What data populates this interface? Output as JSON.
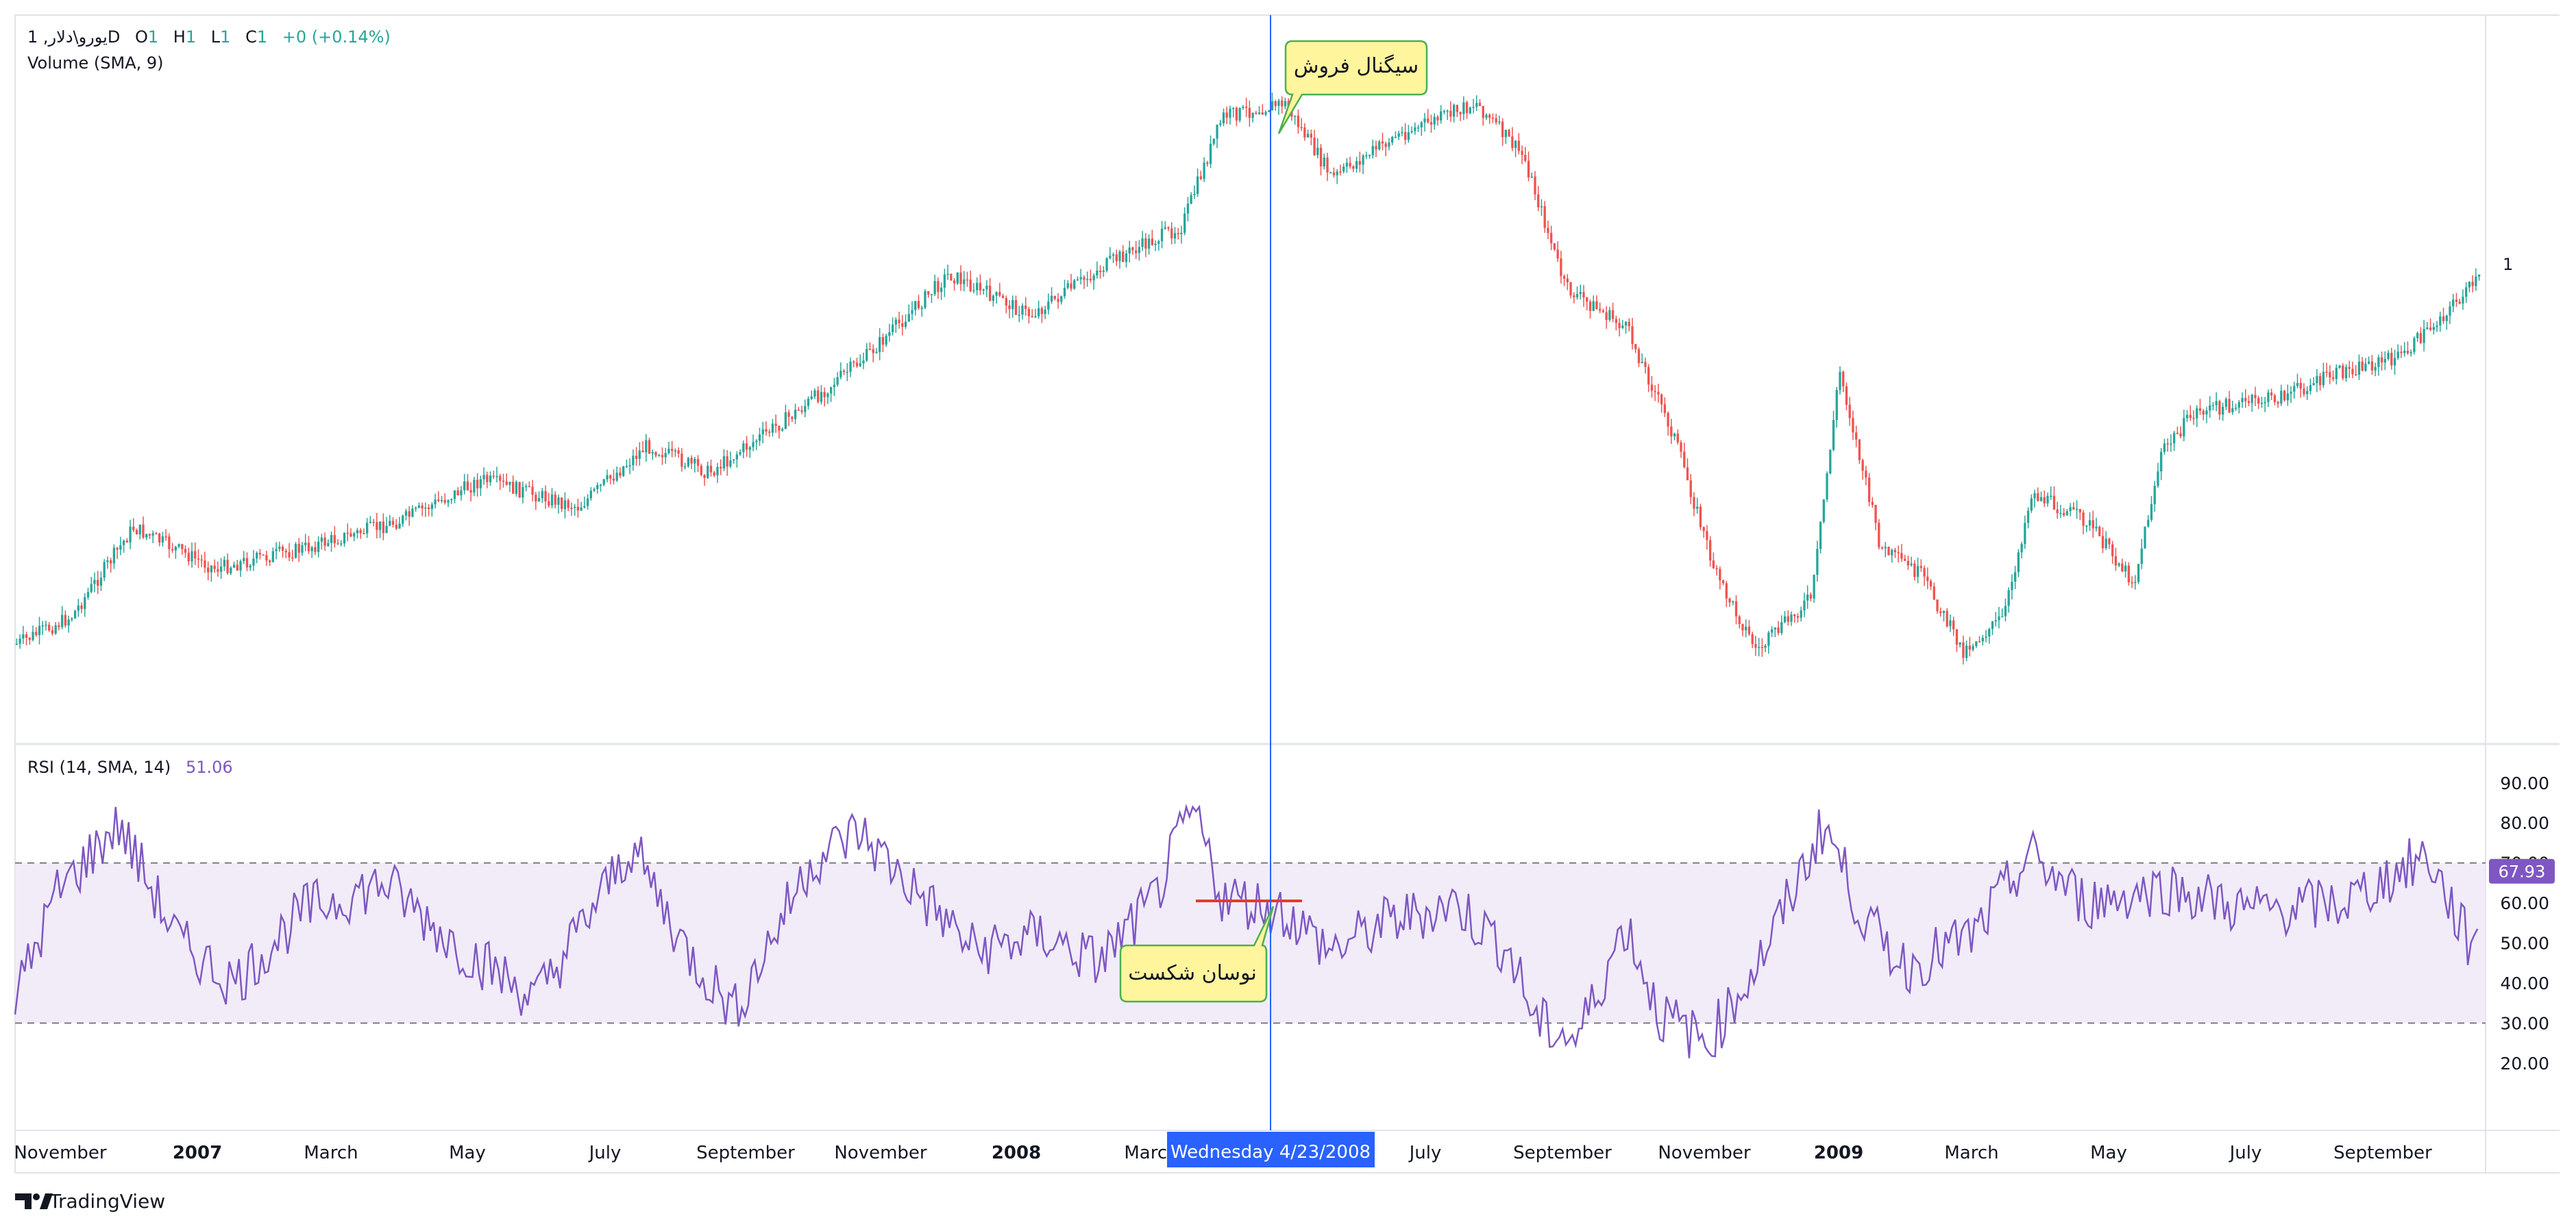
{
  "legend": {
    "symbol": "یورو\\دلار, 1D",
    "o_label": "O",
    "o_value": "1",
    "h_label": "H",
    "h_value": "1",
    "l_label": "L",
    "l_value": "1",
    "c_label": "C",
    "c_value": "1",
    "change": "+0 (+0.14%)",
    "volume": "Volume (SMA, 9)",
    "rsi_title": "RSI (14, SMA, 14)",
    "rsi_value": "51.06"
  },
  "price_scale": {
    "last_price": "1"
  },
  "rsi_scale": {
    "ticks": [
      "90.00",
      "80.00",
      "70.00",
      "60.00",
      "50.00",
      "40.00",
      "30.00",
      "20.00"
    ],
    "tick_values": [
      90,
      80,
      70,
      60,
      50,
      40,
      30,
      20
    ],
    "upper_band": 70,
    "lower_band": 30,
    "current_badge": "67.93",
    "current_value": 67.93
  },
  "time_axis": {
    "labels": [
      "November",
      "2007",
      "March",
      "May",
      "July",
      "September",
      "November",
      "2008",
      "March",
      "July",
      "September",
      "November",
      "2009",
      "March",
      "May",
      "July",
      "September"
    ],
    "bold": [
      false,
      true,
      false,
      false,
      false,
      false,
      false,
      true,
      false,
      false,
      false,
      false,
      true,
      false,
      false,
      false,
      false
    ],
    "crosshair_label": "Wednesday 4/23/2008"
  },
  "annotations": {
    "sell_signal": "سیگنال فروش",
    "swing_break": "نوسان شکست"
  },
  "branding": {
    "name": "TradingView"
  },
  "colors": {
    "up": "#26a69a",
    "down": "#ef5350",
    "rsi_line": "#7e57c2",
    "rsi_band": "#ede7f6",
    "crosshair": "#2962ff",
    "callout_fill": "#fff59d",
    "callout_stroke": "#4caf50",
    "break_line": "#e53935"
  }
}
